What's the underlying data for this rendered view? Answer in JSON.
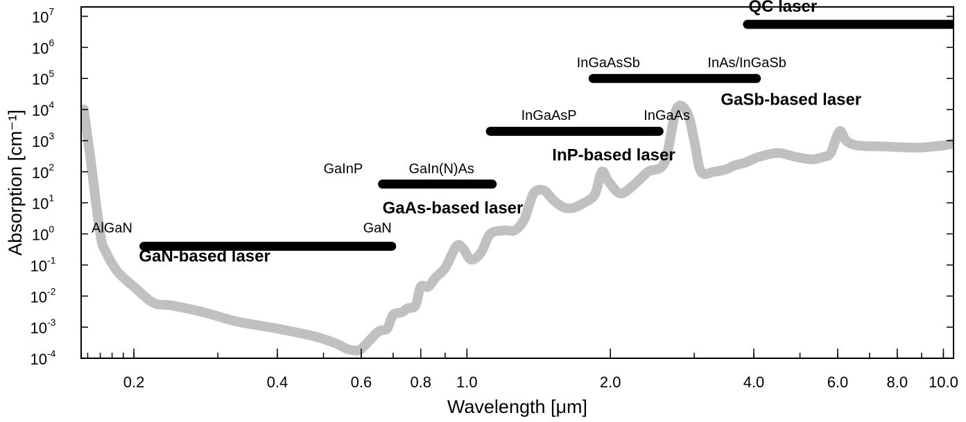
{
  "chart_data": {
    "type": "line",
    "title": "",
    "xlabel": "Wavelength [μm]",
    "ylabel": "Absorption [cm⁻¹]",
    "x_scale": "log",
    "y_scale": "log",
    "xlim": [
      0.155,
      10.5
    ],
    "ylim": [
      0.0001,
      20000000
    ],
    "grid": false,
    "x_tick_labels": [
      {
        "value": 0.2,
        "label": "0.2"
      },
      {
        "value": 0.4,
        "label": "0.4"
      },
      {
        "value": 0.6,
        "label": "0.6"
      },
      {
        "value": 0.8,
        "label": "0.8"
      },
      {
        "value": 1.0,
        "label": "1.0"
      },
      {
        "value": 2.0,
        "label": "2.0"
      },
      {
        "value": 4.0,
        "label": "4.0"
      },
      {
        "value": 6.0,
        "label": "6.0"
      },
      {
        "value": 8.0,
        "label": "8.0"
      },
      {
        "value": 10.0,
        "label": "10.0"
      }
    ],
    "y_tick_labels": [
      {
        "value": 0.0001,
        "base": "10",
        "exp": "-4"
      },
      {
        "value": 0.001,
        "base": "10",
        "exp": "-3"
      },
      {
        "value": 0.01,
        "base": "10",
        "exp": "-2"
      },
      {
        "value": 0.1,
        "base": "10",
        "exp": "-1"
      },
      {
        "value": 1,
        "base": "10",
        "exp": "0"
      },
      {
        "value": 10,
        "base": "10",
        "exp": "1"
      },
      {
        "value": 100,
        "base": "10",
        "exp": "2"
      },
      {
        "value": 1000,
        "base": "10",
        "exp": "3"
      },
      {
        "value": 10000,
        "base": "10",
        "exp": "4"
      },
      {
        "value": 100000,
        "base": "10",
        "exp": "5"
      },
      {
        "value": 1000000,
        "base": "10",
        "exp": "6"
      },
      {
        "value": 10000000,
        "base": "10",
        "exp": "7"
      }
    ],
    "series": [
      {
        "color": "#c0c0c0",
        "x": [
          0.157,
          0.162,
          0.17,
          0.175,
          0.185,
          0.2,
          0.22,
          0.24,
          0.28,
          0.33,
          0.4,
          0.48,
          0.53,
          0.56,
          0.58,
          0.6,
          0.65,
          0.68,
          0.7,
          0.73,
          0.75,
          0.78,
          0.8,
          0.83,
          0.86,
          0.9,
          0.95,
          0.98,
          1.02,
          1.07,
          1.12,
          1.2,
          1.26,
          1.32,
          1.38,
          1.45,
          1.52,
          1.6,
          1.68,
          1.76,
          1.8,
          1.86,
          1.92,
          1.98,
          2.1,
          2.25,
          2.4,
          2.6,
          2.75,
          2.9,
          3.0,
          3.1,
          3.3,
          3.5,
          3.65,
          3.85,
          4.1,
          4.5,
          4.9,
          5.3,
          5.6,
          5.8,
          6.05,
          6.25,
          6.6,
          7.5,
          8.5,
          9.0,
          9.5,
          10.0,
          10.5
        ],
        "y": [
          10000,
          300,
          1,
          0.25,
          0.06,
          0.02,
          0.006,
          0.005,
          0.003,
          0.0015,
          0.0009,
          0.0005,
          0.0003,
          0.0002,
          0.00018,
          0.0002,
          0.0007,
          0.0009,
          0.0025,
          0.003,
          0.004,
          0.005,
          0.02,
          0.02,
          0.04,
          0.08,
          0.4,
          0.35,
          0.15,
          0.25,
          1,
          1.3,
          1.3,
          3,
          20,
          25,
          12,
          7,
          7,
          10,
          12,
          20,
          100,
          50,
          20,
          40,
          100,
          200,
          10000,
          8000,
          1000,
          100,
          100,
          120,
          160,
          200,
          300,
          400,
          300,
          250,
          300,
          400,
          2000,
          1000,
          700,
          650,
          600,
          600,
          650,
          700,
          800
        ]
      }
    ],
    "annotations": [
      {
        "text": "AlGaN",
        "x": 0.163,
        "y": 1.1,
        "anchor": "start",
        "style": "small"
      },
      {
        "text": "GaN",
        "x": 0.695,
        "y": 1.1,
        "anchor": "end",
        "style": "small"
      },
      {
        "text": "GaN-based laser",
        "x": 0.205,
        "y": 0.13,
        "anchor": "start",
        "style": "bold"
      },
      {
        "text": "GaInP",
        "x": 0.5,
        "y": 90,
        "anchor": "start",
        "style": "small"
      },
      {
        "text": "GaIn(N)As",
        "x": 0.755,
        "y": 90,
        "anchor": "start",
        "style": "small"
      },
      {
        "text": "GaAs-based laser",
        "x": 0.665,
        "y": 4.5,
        "anchor": "start",
        "style": "bold"
      },
      {
        "text": "InGaAsP",
        "x": 1.3,
        "y": 4700,
        "anchor": "start",
        "style": "small"
      },
      {
        "text": "InGaAs",
        "x": 2.35,
        "y": 4700,
        "anchor": "start",
        "style": "small"
      },
      {
        "text": "InP-based laser",
        "x": 1.51,
        "y": 230,
        "anchor": "start",
        "style": "bold"
      },
      {
        "text": "InGaAsSb",
        "x": 1.7,
        "y": 230000,
        "anchor": "start",
        "style": "small"
      },
      {
        "text": "InAs/InGaSb",
        "x": 3.2,
        "y": 230000,
        "anchor": "start",
        "style": "small"
      },
      {
        "text": "GaSb-based laser",
        "x": 3.41,
        "y": 14000,
        "anchor": "start",
        "style": "bold"
      },
      {
        "text": "QC laser",
        "x": 3.9,
        "y": 14000000,
        "anchor": "start",
        "style": "bold"
      }
    ],
    "bars": [
      {
        "x0": 0.21,
        "x1": 0.695,
        "y": 0.4
      },
      {
        "x0": 0.665,
        "x1": 1.13,
        "y": 40
      },
      {
        "x0": 1.12,
        "x1": 2.53,
        "y": 2000
      },
      {
        "x0": 1.84,
        "x1": 4.05,
        "y": 100000
      },
      {
        "x0": 3.88,
        "x1": 10.5,
        "y": 5500000
      }
    ]
  }
}
